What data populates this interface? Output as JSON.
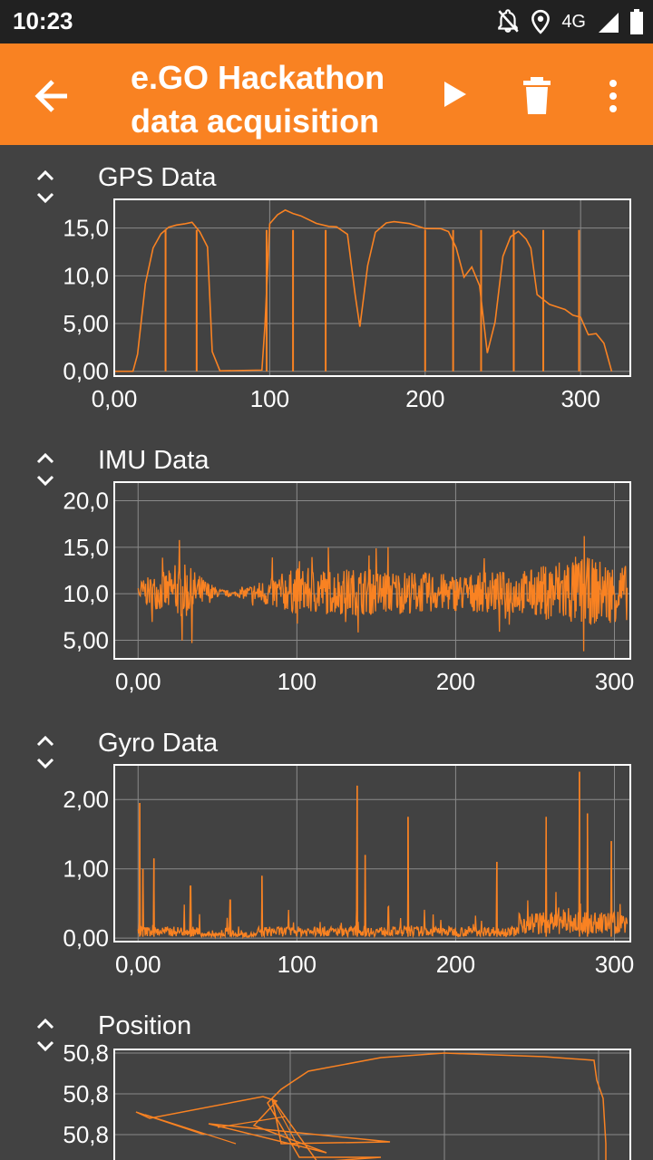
{
  "status": {
    "time": "10:23",
    "network": "4G"
  },
  "appbar": {
    "title_line1": "e.GO Hackathon",
    "title_line2": "data acquisition"
  },
  "icons": {
    "back": "arrow-back-icon",
    "play": "play-icon",
    "delete": "trash-icon",
    "more": "more-vert-icon",
    "expand": "unfold-icon",
    "notifications_off": "notifications-off-icon",
    "location": "location-icon",
    "signal": "signal-icon",
    "battery": "battery-icon"
  },
  "colors": {
    "accent": "#f98222",
    "background": "#424242",
    "statusbar": "#212121",
    "line": "#f98222",
    "grid": "#8a8a8a"
  },
  "sections": [
    {
      "title": "GPS Data"
    },
    {
      "title": "IMU Data"
    },
    {
      "title": "Gyro Data"
    },
    {
      "title": "Position"
    }
  ],
  "chart_data": [
    {
      "type": "line",
      "title": "GPS Data",
      "xlim": [
        0,
        332
      ],
      "ylim": [
        -0.5,
        18
      ],
      "xticks": [
        "0,00",
        "100",
        "200",
        "300"
      ],
      "yticks": [
        "0,00",
        "5,00",
        "10,0",
        "15,0"
      ],
      "x": [
        0,
        12,
        15,
        20,
        25,
        30,
        35,
        40,
        45,
        50,
        55,
        60,
        63,
        68,
        95,
        97,
        100,
        105,
        110,
        115,
        120,
        130,
        138,
        143,
        150,
        155,
        158,
        163,
        168,
        175,
        180,
        190,
        200,
        210,
        215,
        220,
        225,
        230,
        235,
        240,
        245,
        250,
        255,
        260,
        265,
        268,
        272,
        280,
        290,
        295,
        300,
        305,
        310,
        315,
        320
      ],
      "y": [
        0,
        0,
        2,
        9,
        13,
        14.5,
        15,
        15.3,
        15.5,
        15.5,
        14.5,
        13,
        2,
        0,
        0,
        5,
        15.5,
        16.3,
        16.8,
        16.7,
        16.2,
        15.5,
        15.0,
        15.0,
        14.5,
        8.0,
        4.5,
        11.0,
        14.5,
        15.5,
        15.5,
        15.3,
        15.0,
        15.0,
        14.5,
        13.0,
        10.0,
        11.0,
        9.0,
        2.0,
        5.0,
        12.0,
        14.0,
        14.5,
        14.0,
        13.0,
        8.0,
        7.0,
        6.5,
        6.0,
        5.5,
        4.0,
        4.0,
        3.0,
        0
      ],
      "spikes_x": [
        33,
        53,
        98,
        115,
        136,
        200,
        218,
        236,
        257,
        276,
        299
      ]
    },
    {
      "type": "line",
      "title": "IMU Data",
      "xlim": [
        -15,
        310
      ],
      "ylim": [
        3.0,
        22.0
      ],
      "xticks": [
        "0,00",
        "100",
        "200",
        "300"
      ],
      "yticks": [
        "5,00",
        "10,0",
        "15,0",
        "20,0"
      ],
      "x": [
        0,
        30,
        50,
        60,
        80,
        100,
        150,
        200,
        250,
        270,
        290,
        308
      ],
      "y": [
        10.2,
        10.2,
        10.1,
        10.0,
        10.1,
        10.3,
        10.2,
        10.1,
        10.2,
        10.3,
        10.2,
        10.1
      ],
      "noise_amplitude": [
        1.2,
        3.0,
        0.5,
        0.2,
        1.5,
        2.5,
        2.5,
        2.0,
        2.5,
        4.0,
        3.5,
        3.0
      ]
    },
    {
      "type": "line",
      "title": "Gyro Data",
      "xlim": [
        -15,
        310
      ],
      "ylim": [
        -0.05,
        2.5
      ],
      "xticks": [
        "0,00",
        "100",
        "200",
        "300"
      ],
      "yticks": [
        "0,00",
        "1,00",
        "2,00"
      ],
      "spikes": [
        [
          1,
          1.95
        ],
        [
          3,
          1.0
        ],
        [
          10,
          1.15
        ],
        [
          33,
          0.75
        ],
        [
          58,
          0.55
        ],
        [
          78,
          0.9
        ],
        [
          138,
          2.2
        ],
        [
          143,
          1.2
        ],
        [
          170,
          1.75
        ],
        [
          226,
          1.1
        ],
        [
          257,
          1.75
        ],
        [
          278,
          2.4
        ],
        [
          283,
          1.8
        ],
        [
          298,
          1.4
        ]
      ]
    },
    {
      "type": "line",
      "title": "Position",
      "ylim": [
        50.79,
        50.8
      ],
      "yticks": [
        "50,8",
        "50,8",
        "50,8"
      ]
    }
  ]
}
